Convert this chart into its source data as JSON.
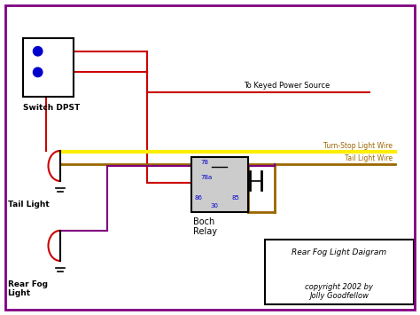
{
  "bg_color": "#ffffff",
  "border_color": "#800080",
  "title": "Rear Fog Light Daigram",
  "copyright": "copyright 2002 by\nJolly Goodfellow",
  "labels": {
    "switch": "Switch DPST",
    "tail_light": "Tail Light",
    "rear_fog": "Rear Fog\nLight",
    "boch_relay": "Boch\nRelay",
    "power_source": "To Keyed Power Source",
    "turn_stop": "Turn-Stop Light Wire",
    "tail_wire": "Tail Light Wire"
  },
  "colors": {
    "red": "#cc0000",
    "yellow": "#ffee00",
    "brown": "#996600",
    "purple": "#800080",
    "blue": "#0000cc",
    "black": "#000000",
    "white": "#ffffff",
    "gray": "#cccccc"
  }
}
